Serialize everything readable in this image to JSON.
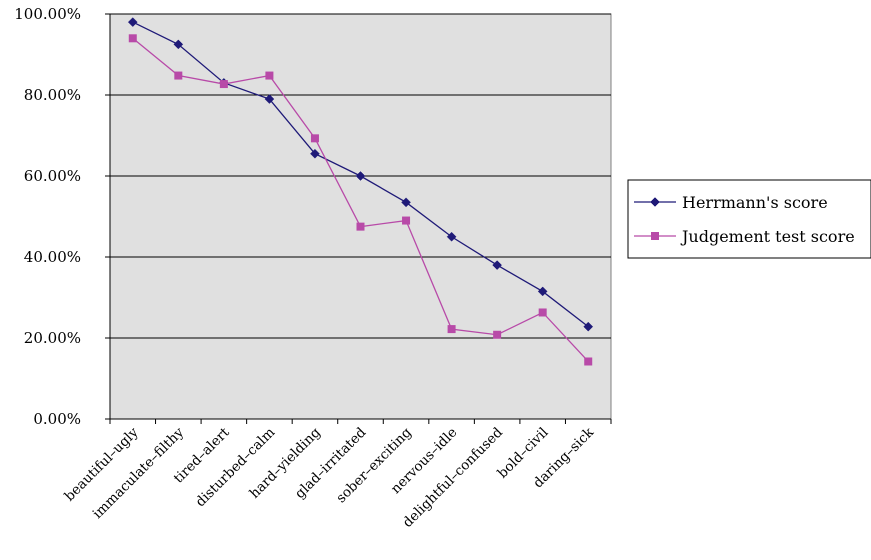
{
  "chart_data": {
    "type": "line",
    "categories": [
      "beautiful–ugly",
      "immaculate–filthy",
      "tired–alert",
      "disturbed–calm",
      "hard–yielding",
      "glad–irritated",
      "sober–exciting",
      "nervous–idle",
      "delightful–confused",
      "bold–civil",
      "daring–sick"
    ],
    "series": [
      {
        "name": "Herrmann's score",
        "color": "#1f1a78",
        "marker": "diamond",
        "values": [
          0.98,
          0.925,
          0.83,
          0.79,
          0.655,
          0.6,
          0.535,
          0.45,
          0.38,
          0.315,
          0.228
        ]
      },
      {
        "name": "Judgement test score",
        "color": "#b84aa8",
        "marker": "square",
        "values": [
          0.94,
          0.848,
          0.827,
          0.848,
          0.693,
          0.475,
          0.49,
          0.222,
          0.208,
          0.263,
          0.142
        ]
      }
    ],
    "ylim": [
      0,
      1
    ],
    "yticks": [
      0,
      0.2,
      0.4,
      0.6,
      0.8,
      1.0
    ],
    "ytick_labels": [
      "0.00%",
      "20.00%",
      "40.00%",
      "60.00%",
      "80.00%",
      "100.00%"
    ],
    "grid": true,
    "plot_background": "#e0e0e0",
    "legend_position": "right"
  }
}
